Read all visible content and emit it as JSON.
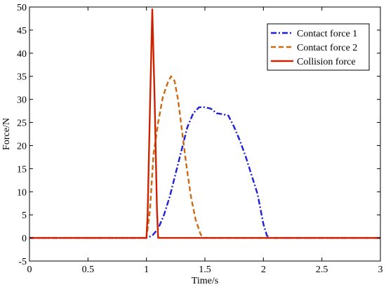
{
  "chart_data": {
    "type": "line",
    "title": "",
    "xlabel": "Time/s",
    "ylabel": "Force/N",
    "xlim": [
      0,
      3
    ],
    "ylim": [
      -5,
      50
    ],
    "xticks": [
      0,
      0.5,
      1,
      1.5,
      2,
      2.5,
      3
    ],
    "xtick_labels": [
      "0",
      "0.5",
      "1",
      "1.5",
      "2",
      "2.5",
      "3"
    ],
    "yticks": [
      -5,
      0,
      5,
      10,
      15,
      20,
      25,
      30,
      35,
      40,
      45,
      50
    ],
    "ytick_labels": [
      "-5",
      "0",
      "5",
      "10",
      "15",
      "20",
      "25",
      "30",
      "35",
      "40",
      "45",
      "50"
    ],
    "grid": false,
    "legend_position": "top-right",
    "series": [
      {
        "name": "Contact force 1",
        "color": "#1f1fd6",
        "style": "dash-dot",
        "x": [
          0,
          0.5,
          1.0,
          1.05,
          1.1,
          1.15,
          1.2,
          1.25,
          1.3,
          1.35,
          1.4,
          1.45,
          1.5,
          1.55,
          1.6,
          1.65,
          1.7,
          1.75,
          1.8,
          1.85,
          1.9,
          1.95,
          2.0,
          2.03,
          2.05,
          2.1,
          2.5,
          3.0
        ],
        "y": [
          0,
          0,
          0,
          0.5,
          2,
          5,
          9,
          14,
          19,
          24,
          27,
          28.3,
          28.3,
          28,
          27,
          26.8,
          26.5,
          24,
          21,
          17.5,
          13.5,
          9.5,
          3,
          0.5,
          0,
          0,
          0,
          0
        ]
      },
      {
        "name": "Contact force 2",
        "color": "#cc6a14",
        "style": "dashed",
        "x": [
          0,
          0.5,
          1.0,
          1.03,
          1.06,
          1.1,
          1.14,
          1.18,
          1.21,
          1.24,
          1.27,
          1.3,
          1.34,
          1.38,
          1.42,
          1.46,
          1.48,
          1.5,
          2.0,
          3.0
        ],
        "y": [
          0,
          0,
          0,
          6,
          18,
          25,
          30.5,
          33.5,
          35,
          34,
          30,
          24,
          16,
          9,
          4,
          1,
          0,
          0,
          0,
          0
        ]
      },
      {
        "name": "Collision force",
        "color": "#cc2200",
        "style": "solid",
        "x": [
          0,
          0.5,
          1.0,
          1.01,
          1.03,
          1.05,
          1.07,
          1.09,
          1.1,
          1.5,
          2.0,
          3.0
        ],
        "y": [
          0,
          0,
          0,
          5,
          28,
          49.5,
          30,
          6,
          0,
          0,
          0,
          0
        ]
      }
    ]
  }
}
